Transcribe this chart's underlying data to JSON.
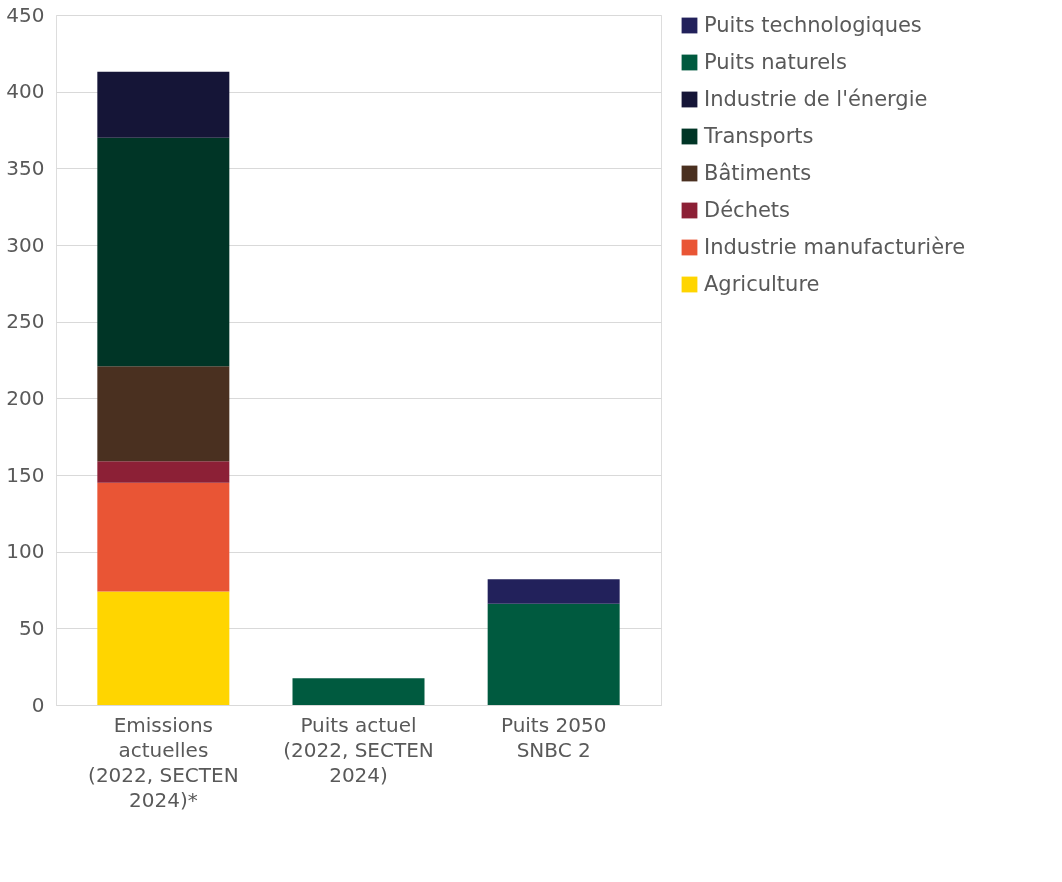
{
  "chart_data": {
    "type": "bar",
    "stacked": true,
    "categories": [
      "Emissions actuelles (2022, SECTEN 2024)*",
      "Puits actuel (2022, SECTEN 2024)",
      "Puits 2050 SNBC 2"
    ],
    "series": [
      {
        "name": "Agriculture",
        "color": "#ffd500",
        "values": [
          74,
          null,
          null
        ]
      },
      {
        "name": "Industrie manufacturière",
        "color": "#e95535",
        "values": [
          71,
          null,
          null
        ]
      },
      {
        "name": "Déchets",
        "color": "#8c2036",
        "values": [
          14,
          null,
          null
        ]
      },
      {
        "name": "Bâtiments",
        "color": "#4a3020",
        "values": [
          62,
          null,
          null
        ]
      },
      {
        "name": "Transports",
        "color": "#003526",
        "values": [
          149,
          null,
          null
        ]
      },
      {
        "name": "Industrie de l'énergie",
        "color": "#151537",
        "values": [
          43,
          null,
          null
        ]
      },
      {
        "name": "Puits naturels",
        "color": "#005a3f",
        "values": [
          null,
          17.5,
          66
        ]
      },
      {
        "name": "Puits technologiques",
        "color": "#22215b",
        "values": [
          null,
          null,
          16
        ]
      }
    ],
    "ylim": [
      0,
      450
    ],
    "yticks": [
      0,
      50,
      100,
      150,
      200,
      250,
      300,
      350,
      400,
      450
    ],
    "grid": "y",
    "legend": "right"
  }
}
